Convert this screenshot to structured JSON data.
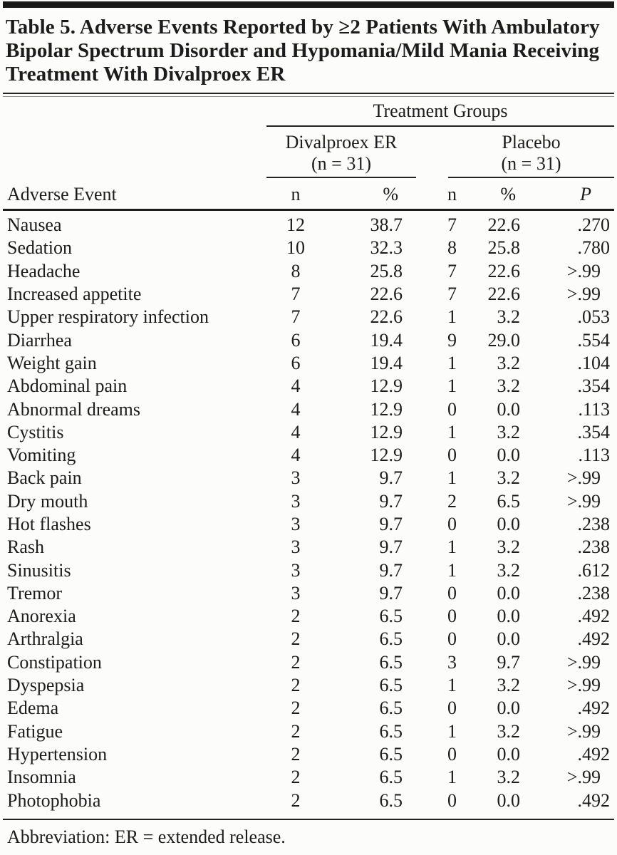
{
  "table": {
    "title": "Table 5. Adverse Events Reported by ≥2 Patients With Ambulatory Bipolar Spectrum Disorder and Hypomania/Mild Mania Receiving Treatment With Divalproex ER",
    "group_header": "Treatment Groups",
    "groups": [
      {
        "name": "Divalproex ER",
        "n_label": "(n = 31)"
      },
      {
        "name": "Placebo",
        "n_label": "(n = 31)"
      }
    ],
    "columns": [
      "Adverse Event",
      "n",
      "%",
      "n",
      "%",
      "P"
    ],
    "rows": [
      {
        "event": "Nausea",
        "d_n": "12",
        "d_pct": "38.7",
        "p_n": "7",
        "p_pct": "22.6",
        "p": ".270"
      },
      {
        "event": "Sedation",
        "d_n": "10",
        "d_pct": "32.3",
        "p_n": "8",
        "p_pct": "25.8",
        "p": ".780"
      },
      {
        "event": "Headache",
        "d_n": "8",
        "d_pct": "25.8",
        "p_n": "7",
        "p_pct": "22.6",
        "p": ">.99"
      },
      {
        "event": "Increased appetite",
        "d_n": "7",
        "d_pct": "22.6",
        "p_n": "7",
        "p_pct": "22.6",
        "p": ">.99"
      },
      {
        "event": "Upper respiratory infection",
        "d_n": "7",
        "d_pct": "22.6",
        "p_n": "1",
        "p_pct": "3.2",
        "p": ".053"
      },
      {
        "event": "Diarrhea",
        "d_n": "6",
        "d_pct": "19.4",
        "p_n": "9",
        "p_pct": "29.0",
        "p": ".554"
      },
      {
        "event": "Weight gain",
        "d_n": "6",
        "d_pct": "19.4",
        "p_n": "1",
        "p_pct": "3.2",
        "p": ".104"
      },
      {
        "event": "Abdominal pain",
        "d_n": "4",
        "d_pct": "12.9",
        "p_n": "1",
        "p_pct": "3.2",
        "p": ".354"
      },
      {
        "event": "Abnormal dreams",
        "d_n": "4",
        "d_pct": "12.9",
        "p_n": "0",
        "p_pct": "0.0",
        "p": ".113"
      },
      {
        "event": "Cystitis",
        "d_n": "4",
        "d_pct": "12.9",
        "p_n": "1",
        "p_pct": "3.2",
        "p": ".354"
      },
      {
        "event": "Vomiting",
        "d_n": "4",
        "d_pct": "12.9",
        "p_n": "0",
        "p_pct": "0.0",
        "p": ".113"
      },
      {
        "event": "Back pain",
        "d_n": "3",
        "d_pct": "9.7",
        "p_n": "1",
        "p_pct": "3.2",
        "p": ">.99"
      },
      {
        "event": "Dry mouth",
        "d_n": "3",
        "d_pct": "9.7",
        "p_n": "2",
        "p_pct": "6.5",
        "p": ">.99"
      },
      {
        "event": "Hot flashes",
        "d_n": "3",
        "d_pct": "9.7",
        "p_n": "0",
        "p_pct": "0.0",
        "p": ".238"
      },
      {
        "event": "Rash",
        "d_n": "3",
        "d_pct": "9.7",
        "p_n": "1",
        "p_pct": "3.2",
        "p": ".238"
      },
      {
        "event": "Sinusitis",
        "d_n": "3",
        "d_pct": "9.7",
        "p_n": "1",
        "p_pct": "3.2",
        "p": ".612"
      },
      {
        "event": "Tremor",
        "d_n": "3",
        "d_pct": "9.7",
        "p_n": "0",
        "p_pct": "0.0",
        "p": ".238"
      },
      {
        "event": "Anorexia",
        "d_n": "2",
        "d_pct": "6.5",
        "p_n": "0",
        "p_pct": "0.0",
        "p": ".492"
      },
      {
        "event": "Arthralgia",
        "d_n": "2",
        "d_pct": "6.5",
        "p_n": "0",
        "p_pct": "0.0",
        "p": ".492"
      },
      {
        "event": "Constipation",
        "d_n": "2",
        "d_pct": "6.5",
        "p_n": "3",
        "p_pct": "9.7",
        "p": ">.99"
      },
      {
        "event": "Dyspepsia",
        "d_n": "2",
        "d_pct": "6.5",
        "p_n": "1",
        "p_pct": "3.2",
        "p": ">.99"
      },
      {
        "event": "Edema",
        "d_n": "2",
        "d_pct": "6.5",
        "p_n": "0",
        "p_pct": "0.0",
        "p": ".492"
      },
      {
        "event": "Fatigue",
        "d_n": "2",
        "d_pct": "6.5",
        "p_n": "1",
        "p_pct": "3.2",
        "p": ">.99"
      },
      {
        "event": "Hypertension",
        "d_n": "2",
        "d_pct": "6.5",
        "p_n": "0",
        "p_pct": "0.0",
        "p": ".492"
      },
      {
        "event": "Insomnia",
        "d_n": "2",
        "d_pct": "6.5",
        "p_n": "1",
        "p_pct": "3.2",
        "p": ">.99"
      },
      {
        "event": "Photophobia",
        "d_n": "2",
        "d_pct": "6.5",
        "p_n": "0",
        "p_pct": "0.0",
        "p": ".492"
      }
    ],
    "footnote": "Abbreviation: ER = extended release."
  },
  "colors": {
    "text": "#1c1c1c",
    "rule": "#222222",
    "top_bar": "#1a1a1a",
    "background": "#fcfcfa"
  }
}
